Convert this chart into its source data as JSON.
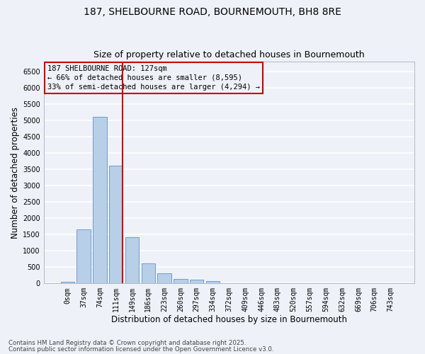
{
  "title1": "187, SHELBOURNE ROAD, BOURNEMOUTH, BH8 8RE",
  "title2": "Size of property relative to detached houses in Bournemouth",
  "xlabel": "Distribution of detached houses by size in Bournemouth",
  "ylabel": "Number of detached properties",
  "bar_labels": [
    "0sqm",
    "37sqm",
    "74sqm",
    "111sqm",
    "149sqm",
    "186sqm",
    "223sqm",
    "260sqm",
    "297sqm",
    "334sqm",
    "372sqm",
    "409sqm",
    "446sqm",
    "483sqm",
    "520sqm",
    "557sqm",
    "594sqm",
    "632sqm",
    "669sqm",
    "706sqm",
    "743sqm"
  ],
  "bar_values": [
    50,
    1650,
    5100,
    3620,
    1420,
    620,
    310,
    140,
    110,
    65,
    0,
    0,
    0,
    0,
    0,
    0,
    0,
    0,
    0,
    0,
    0
  ],
  "bar_color": "#b8cfe8",
  "bar_edge_color": "#6090c8",
  "ylim": [
    0,
    6800
  ],
  "yticks": [
    0,
    500,
    1000,
    1500,
    2000,
    2500,
    3000,
    3500,
    4000,
    4500,
    5000,
    5500,
    6000,
    6500
  ],
  "vline_x_idx": 3.42,
  "vline_color": "#cc0000",
  "annotation_text": "187 SHELBOURNE ROAD: 127sqm\n← 66% of detached houses are smaller (8,595)\n33% of semi-detached houses are larger (4,294) →",
  "annotation_box_color": "#cc0000",
  "footnote1": "Contains HM Land Registry data © Crown copyright and database right 2025.",
  "footnote2": "Contains public sector information licensed under the Open Government Licence v3.0.",
  "bg_color": "#eef2f8",
  "grid_color": "#ffffff",
  "title1_fontsize": 10,
  "title2_fontsize": 9,
  "axis_label_fontsize": 8.5,
  "tick_fontsize": 7,
  "annotation_fontsize": 7.5
}
